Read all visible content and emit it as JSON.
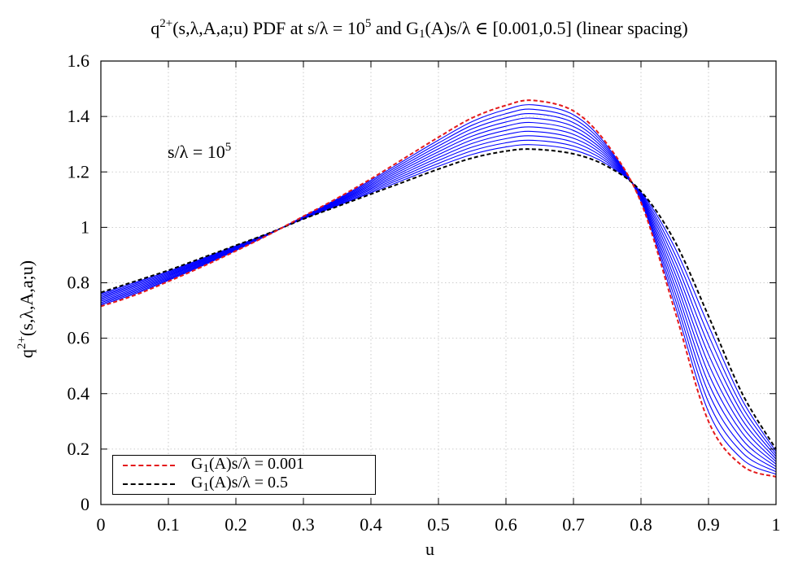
{
  "title": {
    "q": "q",
    "q_sup": "2+",
    "rest1": "(s,λ,A,a;u) PDF at s/λ = 10",
    "sup_exp": "5",
    "rest2": " and G",
    "sub_1": "1",
    "rest3": "(A)s/λ ∈  [0.001,0.5] (linear spacing)"
  },
  "xlabel": "u",
  "ylabel": {
    "q": "q",
    "sup": "2+",
    "rest": "(s,λ,A,a;u)"
  },
  "annotation": {
    "text": "s/λ = 10",
    "sup": "5"
  },
  "legend": [
    {
      "g": "G",
      "sub": "1",
      "rest": "(A)s/λ = 0.001",
      "color": "#e41a1c"
    },
    {
      "g": "G",
      "sub": "1",
      "rest": "(A)s/λ = 0.5",
      "color": "#000000"
    }
  ],
  "chart_data": {
    "type": "line",
    "xlabel": "u",
    "ylabel": "q2+(s,λ,A,a;u)",
    "xlim": [
      0,
      1
    ],
    "ylim": [
      0,
      1.6
    ],
    "xticks": [
      "0",
      "0.1",
      "0.2",
      "0.3",
      "0.4",
      "0.5",
      "0.6",
      "0.7",
      "0.8",
      "0.9",
      "1"
    ],
    "yticks": [
      "0",
      "0.2",
      "0.4",
      "0.6",
      "0.8",
      "1",
      "1.2",
      "1.4",
      "1.6"
    ],
    "grid": true,
    "legend_position": "bottom-left",
    "x": [
      0,
      0.05,
      0.1,
      0.15,
      0.2,
      0.25,
      0.3,
      0.35,
      0.4,
      0.45,
      0.5,
      0.55,
      0.6,
      0.64,
      0.7,
      0.75,
      0.8,
      0.85,
      0.9,
      0.95,
      1.0
    ],
    "series": [
      {
        "name": "G1(A)s/λ = 0.001",
        "color": "#e41a1c",
        "style": "dashed",
        "values": [
          0.715,
          0.755,
          0.805,
          0.858,
          0.915,
          0.975,
          1.04,
          1.105,
          1.175,
          1.25,
          1.325,
          1.395,
          1.44,
          1.458,
          1.42,
          1.3,
          1.09,
          0.7,
          0.3,
          0.14,
          0.1
        ]
      },
      {
        "name": "G1(A)s/λ = 0.5",
        "color": "#000000",
        "style": "dashed",
        "values": [
          0.765,
          0.805,
          0.845,
          0.89,
          0.935,
          0.98,
          1.03,
          1.075,
          1.12,
          1.165,
          1.21,
          1.25,
          1.275,
          1.282,
          1.265,
          1.22,
          1.13,
          0.95,
          0.68,
          0.4,
          0.2
        ]
      }
    ],
    "intermediate_curves": {
      "count": 10,
      "color": "#0000ff",
      "style": "solid"
    }
  }
}
